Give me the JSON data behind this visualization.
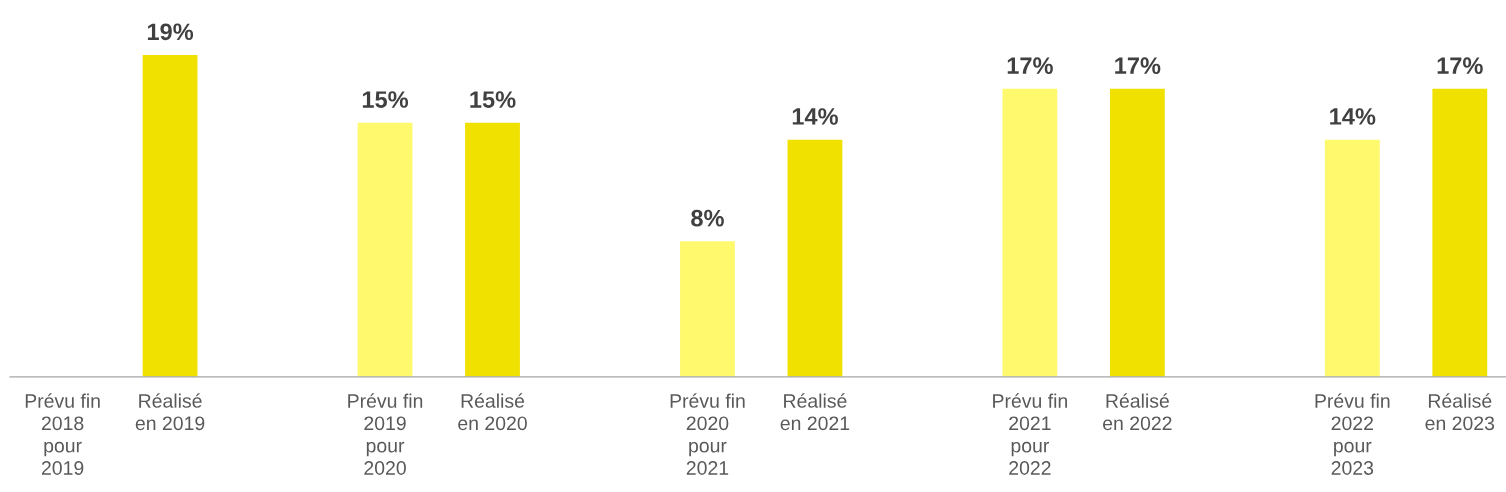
{
  "chart_data": {
    "type": "bar",
    "categories": [
      "Prévu fin\n2018\npour\n2019",
      "Réalisé\nen 2019",
      "Prévu fin\n2019\npour\n2020",
      "Réalisé\nen 2020",
      "Prévu fin\n2020\npour\n2021",
      "Réalisé\nen 2021",
      "Prévu fin\n2021\npour\n2022",
      "Réalisé\nen 2022",
      "Prévu fin\n2022\npour\n2023",
      "Réalisé\nen 2023"
    ],
    "values": [
      null,
      19,
      15,
      15,
      8,
      14,
      17,
      17,
      14,
      17
    ],
    "value_labels": [
      null,
      "19%",
      "15%",
      "15%",
      "8%",
      "14%",
      "17%",
      "17%",
      "14%",
      "17%"
    ],
    "colors": [
      "#fff96e",
      "#f0e100",
      "#fff96e",
      "#f0e100",
      "#fff96e",
      "#f0e100",
      "#fff96e",
      "#f0e100",
      "#fff96e",
      "#f0e100"
    ],
    "grid": false,
    "legend": false
  }
}
